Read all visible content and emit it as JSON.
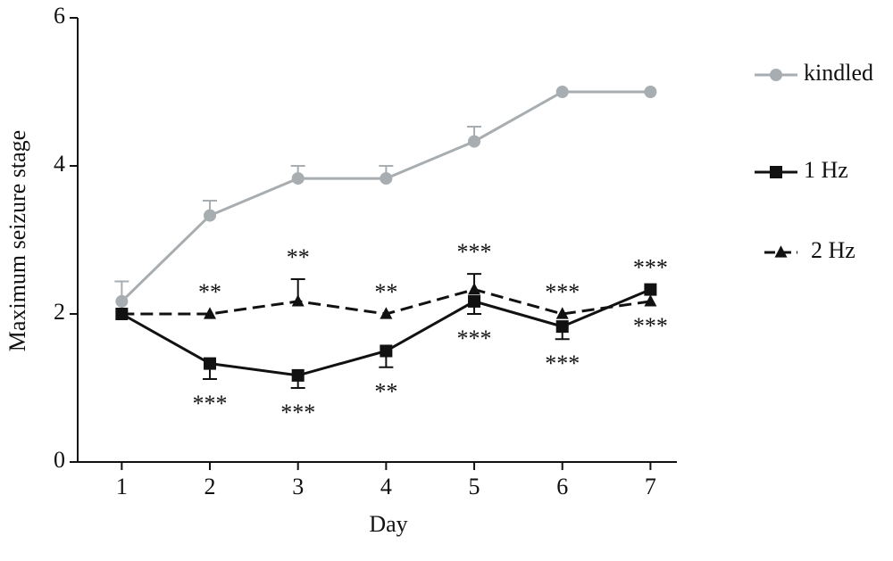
{
  "chart_data": {
    "type": "line",
    "xlabel": "Day",
    "ylabel": "Maximum seizure stage",
    "x": [
      1,
      2,
      3,
      4,
      5,
      6,
      7
    ],
    "xlim": [
      0.5,
      7.3
    ],
    "xticks": [
      1,
      2,
      3,
      4,
      5,
      6,
      7
    ],
    "ylim": [
      0,
      6
    ],
    "yticks": [
      0,
      2,
      4,
      6
    ],
    "series": [
      {
        "name": "kindled",
        "color": "#a7adb0",
        "marker": "circle",
        "dash": false,
        "error_direction": "up",
        "values": [
          2.17,
          3.33,
          3.83,
          3.83,
          4.33,
          5,
          5
        ],
        "errors": [
          0.27,
          0.2,
          0.17,
          0.17,
          0.2,
          0,
          0
        ],
        "annotations": [
          null,
          null,
          null,
          null,
          null,
          null,
          null
        ]
      },
      {
        "name": "1 Hz",
        "color": "#111111",
        "marker": "square",
        "dash": false,
        "error_direction": "down",
        "values": [
          2,
          1.33,
          1.17,
          1.5,
          2.17,
          1.83,
          2.33
        ],
        "errors": [
          0,
          0.21,
          0.17,
          0.22,
          0.17,
          0.17,
          0
        ],
        "annotations": [
          null,
          "***",
          "***",
          "**",
          "***",
          "***",
          "***"
        ]
      },
      {
        "name": "2 Hz",
        "color": "#111111",
        "marker": "triangle",
        "dash": true,
        "error_direction": "up",
        "values": [
          2,
          2,
          2.17,
          2,
          2.33,
          2,
          2.17
        ],
        "errors": [
          0,
          0,
          0.3,
          0,
          0.21,
          0,
          0
        ],
        "annotations": [
          null,
          "**",
          "**",
          "**",
          "***",
          "***",
          "***"
        ]
      }
    ]
  }
}
